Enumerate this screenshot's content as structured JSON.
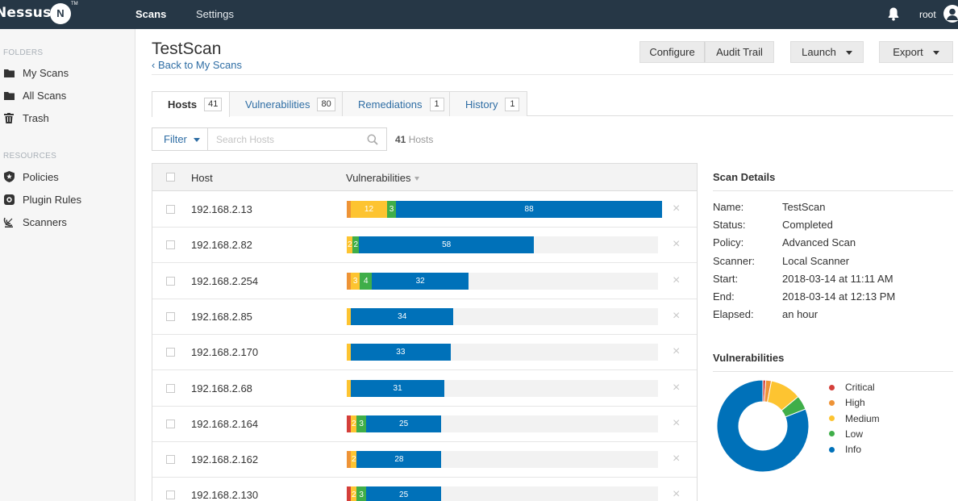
{
  "topbar": {
    "logo": "Nessus",
    "logo_badge": "N",
    "logo_tm": "TM",
    "nav": [
      {
        "label": "Scans"
      },
      {
        "label": "Settings"
      }
    ],
    "user": "root"
  },
  "sidebar": {
    "folders_heading": "FOLDERS",
    "folders": [
      {
        "label": "My Scans",
        "icon": "folder-icon"
      },
      {
        "label": "All Scans",
        "icon": "folder-icon"
      },
      {
        "label": "Trash",
        "icon": "trash-icon"
      }
    ],
    "resources_heading": "RESOURCES",
    "resources": [
      {
        "label": "Policies",
        "icon": "policy-shield-icon"
      },
      {
        "label": "Plugin Rules",
        "icon": "plugin-rules-icon"
      },
      {
        "label": "Scanners",
        "icon": "scanner-radar-icon"
      }
    ]
  },
  "header": {
    "title": "TestScan",
    "back_link": "‹ Back to My Scans",
    "buttons": {
      "configure": "Configure",
      "audit_trail": "Audit Trail",
      "launch": "Launch",
      "export": "Export"
    }
  },
  "tabs": [
    {
      "label": "Hosts",
      "count": "41",
      "active": true
    },
    {
      "label": "Vulnerabilities",
      "count": "80"
    },
    {
      "label": "Remediations",
      "count": "1"
    },
    {
      "label": "History",
      "count": "1"
    }
  ],
  "filter": {
    "button": "Filter",
    "search_placeholder": "Search Hosts",
    "count_number": "41",
    "count_label": "Hosts"
  },
  "table": {
    "columns": {
      "host": "Host",
      "vulnerabilities": "Vulnerabilities"
    },
    "scale_max": 103,
    "rows": [
      {
        "host": "192.168.2.13",
        "segments": [
          {
            "s": "high",
            "v": 1
          },
          {
            "s": "medium",
            "v": 12,
            "label": "12"
          },
          {
            "s": "low",
            "v": 3,
            "label": "3"
          },
          {
            "s": "info",
            "v": 88,
            "label": "88"
          }
        ]
      },
      {
        "host": "192.168.2.82",
        "segments": [
          {
            "s": "high",
            "v": 0
          },
          {
            "s": "medium",
            "v": 2,
            "label": "2"
          },
          {
            "s": "low",
            "v": 2,
            "label": "2"
          },
          {
            "s": "info",
            "v": 58,
            "label": "58"
          }
        ]
      },
      {
        "host": "192.168.2.254",
        "segments": [
          {
            "s": "high",
            "v": 1
          },
          {
            "s": "medium",
            "v": 3,
            "label": "3"
          },
          {
            "s": "low",
            "v": 4,
            "label": "4"
          },
          {
            "s": "info",
            "v": 32,
            "label": "32"
          }
        ]
      },
      {
        "host": "192.168.2.85",
        "segments": [
          {
            "s": "medium",
            "v": 1
          },
          {
            "s": "info",
            "v": 34,
            "label": "34"
          }
        ]
      },
      {
        "host": "192.168.2.170",
        "segments": [
          {
            "s": "medium",
            "v": 1
          },
          {
            "s": "info",
            "v": 33,
            "label": "33"
          }
        ]
      },
      {
        "host": "192.168.2.68",
        "segments": [
          {
            "s": "medium",
            "v": 1
          },
          {
            "s": "info",
            "v": 31,
            "label": "31"
          }
        ]
      },
      {
        "host": "192.168.2.164",
        "segments": [
          {
            "s": "critical",
            "v": 1
          },
          {
            "s": "medium",
            "v": 2,
            "label": "2"
          },
          {
            "s": "low",
            "v": 3,
            "label": "3"
          },
          {
            "s": "info",
            "v": 25,
            "label": "25"
          }
        ]
      },
      {
        "host": "192.168.2.162",
        "segments": [
          {
            "s": "high",
            "v": 1
          },
          {
            "s": "medium",
            "v": 2,
            "label": "2"
          },
          {
            "s": "info",
            "v": 28,
            "label": "28"
          }
        ]
      },
      {
        "host": "192.168.2.130",
        "segments": [
          {
            "s": "critical",
            "v": 1
          },
          {
            "s": "medium",
            "v": 2,
            "label": "2"
          },
          {
            "s": "low",
            "v": 3,
            "label": "3"
          },
          {
            "s": "info",
            "v": 25,
            "label": "25"
          }
        ]
      }
    ]
  },
  "scan_details": {
    "title": "Scan Details",
    "items": [
      {
        "label": "Name:",
        "value": "TestScan"
      },
      {
        "label": "Status:",
        "value": "Completed"
      },
      {
        "label": "Policy:",
        "value": "Advanced Scan"
      },
      {
        "label": "Scanner:",
        "value": "Local Scanner"
      },
      {
        "label": "Start:",
        "value": "2018-03-14 at 11:11 AM"
      },
      {
        "label": "End:",
        "value": "2018-03-14 at 12:13 PM"
      },
      {
        "label": "Elapsed:",
        "value": "an hour"
      }
    ]
  },
  "vulnerabilities_chart": {
    "title": "Vulnerabilities",
    "legend": [
      "Critical",
      "High",
      "Medium",
      "Low",
      "Info"
    ]
  },
  "chart_data": {
    "type": "pie",
    "categories": [
      "Critical",
      "High",
      "Medium",
      "Low",
      "Info"
    ],
    "values": [
      1,
      2,
      11,
      5,
      81
    ]
  },
  "colors": {
    "critical": "#d43f3a",
    "high": "#ee9336",
    "medium": "#fdc431",
    "low": "#3fae49",
    "info": "#0071b9"
  }
}
